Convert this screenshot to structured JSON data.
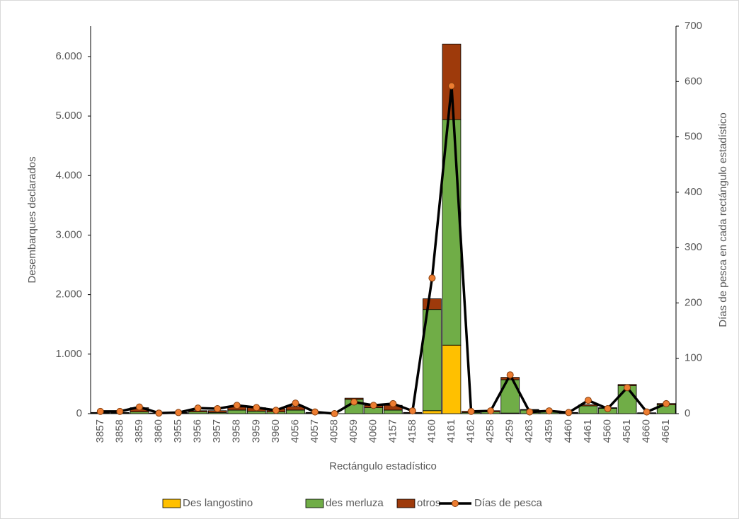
{
  "chart_data": {
    "type": "bar",
    "stacked": true,
    "x_label": "Rectángulo estadístico",
    "y_label": "Desembarques declarados",
    "y2_label": "Días de pesca en cada rectángulo estadístico",
    "categories": [
      "3857",
      "3858",
      "3859",
      "3860",
      "3955",
      "3956",
      "3957",
      "3958",
      "3959",
      "3960",
      "4056",
      "4057",
      "4058",
      "4059",
      "4060",
      "4157",
      "4158",
      "4160",
      "4161",
      "4162",
      "4258",
      "4259",
      "4263",
      "4359",
      "4460",
      "4461",
      "4560",
      "4561",
      "4660",
      "4661"
    ],
    "series": [
      {
        "name": "Des langostino",
        "color": "#ffc000",
        "values": [
          0,
          0,
          0,
          0,
          0,
          0,
          0,
          0,
          0,
          0,
          0,
          0,
          0,
          0,
          0,
          0,
          0,
          50,
          1150,
          0,
          0,
          10,
          0,
          0,
          0,
          0,
          0,
          0,
          0,
          0
        ]
      },
      {
        "name": "des merluza",
        "color": "#70ad47",
        "values": [
          10,
          10,
          30,
          5,
          10,
          30,
          20,
          60,
          40,
          30,
          60,
          10,
          0,
          240,
          100,
          60,
          10,
          1700,
          3790,
          20,
          30,
          560,
          60,
          30,
          10,
          130,
          90,
          470,
          10,
          150
        ]
      },
      {
        "name": "otros",
        "color": "#9e3a0b",
        "values": [
          10,
          10,
          70,
          5,
          10,
          20,
          30,
          50,
          60,
          50,
          60,
          10,
          0,
          20,
          40,
          80,
          10,
          180,
          1270,
          20,
          20,
          40,
          10,
          10,
          10,
          20,
          10,
          20,
          5,
          20
        ]
      },
      {
        "name": "Días de pesca",
        "type": "line",
        "axis": "y2",
        "color": "#000000",
        "marker_color": "#ed7d31",
        "values": [
          4,
          4,
          12,
          1,
          2,
          10,
          9,
          15,
          11,
          6,
          19,
          3,
          0,
          21,
          15,
          18,
          5,
          245,
          592,
          4,
          5,
          70,
          3,
          5,
          2,
          24,
          9,
          47,
          3,
          18
        ]
      }
    ],
    "ylim": [
      0,
      6510
    ],
    "yticks": [
      0,
      {
        "value": 1000,
        "label": "1.000"
      },
      {
        "value": 2000,
        "label": "2.000"
      },
      {
        "value": 3000,
        "label": "3.000"
      },
      {
        "value": 4000,
        "label": "4.000"
      },
      {
        "value": 5000,
        "label": "5.000"
      },
      {
        "value": 6000,
        "label": "6.000"
      }
    ],
    "y2lim": [
      0,
      700
    ],
    "y2ticks": [
      0,
      100,
      200,
      300,
      400,
      500,
      600,
      700
    ],
    "grid": false,
    "legend": "bottom"
  }
}
